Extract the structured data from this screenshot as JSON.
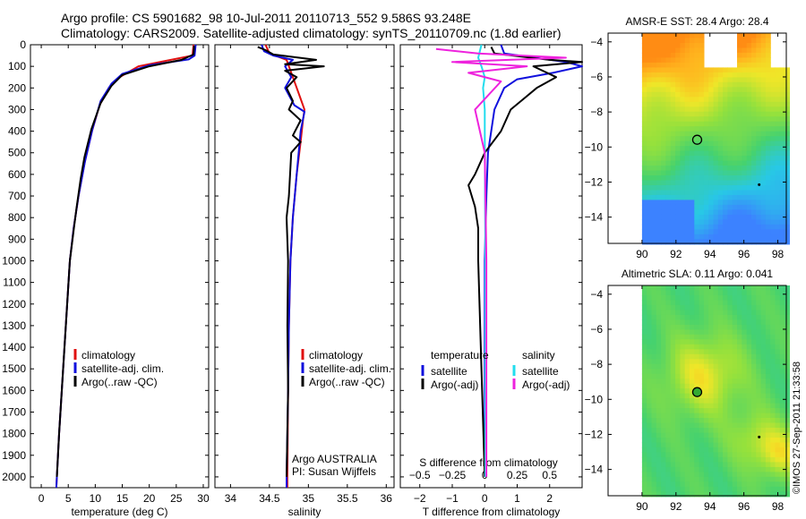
{
  "header": {
    "line1": "Argo profile: CS 5901682_98 10-Jul-2011 20110713_552 9.586S 93.248E",
    "line2": "Climatology: CARS2009. Satellite-adjusted climatology: synTS_20110709.nc (1.8d earlier)"
  },
  "colors": {
    "climatology": "#e01010",
    "satellite": "#1010dd",
    "argo": "#000000",
    "salinity_satellite": "#22ddee",
    "salinity_argo": "#ee22dd"
  },
  "credits": {
    "argo": "Argo AUSTRALIA",
    "pi": "PI: Susan Wijffels",
    "stamp": "©IMOS 27-Sep-2011 21:33:58"
  },
  "chart_data": [
    {
      "type": "line",
      "panel": "temperature",
      "xlabel": "temperature (deg C)",
      "ylabel": "",
      "xlim": [
        -2,
        31
      ],
      "ylim": [
        2050,
        0
      ],
      "x_ticks": [
        0,
        5,
        10,
        15,
        20,
        25,
        30
      ],
      "y_ticks": [
        0,
        100,
        200,
        300,
        400,
        500,
        600,
        700,
        800,
        900,
        1000,
        1100,
        1200,
        1300,
        1400,
        1500,
        1600,
        1700,
        1800,
        1900,
        2000
      ],
      "legend": [
        "climatology",
        "satellite-adj. clim.",
        "Argo(..raw -QC)"
      ],
      "series": [
        {
          "name": "climatology",
          "color": "#e01010",
          "points": [
            [
              28.2,
              0
            ],
            [
              28,
              50
            ],
            [
              24,
              70
            ],
            [
              18,
              100
            ],
            [
              14.5,
              150
            ],
            [
              12.5,
              200
            ],
            [
              10.8,
              280
            ],
            [
              9.4,
              400
            ],
            [
              8,
              550
            ],
            [
              6.9,
              700
            ],
            [
              6,
              850
            ],
            [
              5.3,
              1000
            ],
            [
              4.8,
              1200
            ],
            [
              4.3,
              1400
            ],
            [
              3.8,
              1600
            ],
            [
              3.3,
              1800
            ],
            [
              2.9,
              2000
            ],
            [
              2.8,
              2050
            ]
          ]
        },
        {
          "name": "satellite-adj. clim.",
          "color": "#1010dd",
          "points": [
            [
              28.6,
              0
            ],
            [
              28.4,
              50
            ],
            [
              27.3,
              68
            ],
            [
              20,
              95
            ],
            [
              15,
              135
            ],
            [
              13,
              180
            ],
            [
              11,
              260
            ],
            [
              9.5,
              390
            ],
            [
              8.1,
              540
            ],
            [
              6.9,
              700
            ],
            [
              6,
              850
            ],
            [
              5.3,
              1000
            ],
            [
              4.8,
              1200
            ],
            [
              4.3,
              1400
            ],
            [
              3.8,
              1600
            ],
            [
              3.3,
              1800
            ],
            [
              2.9,
              2000
            ],
            [
              2.8,
              2050
            ]
          ]
        },
        {
          "name": "Argo(..raw -QC)",
          "color": "#000000",
          "points": [
            [
              28.3,
              5
            ],
            [
              28.2,
              45
            ],
            [
              26,
              70
            ],
            [
              20,
              100
            ],
            [
              15,
              140
            ],
            [
              13,
              190
            ],
            [
              11,
              270
            ],
            [
              9.3,
              390
            ],
            [
              8,
              520
            ],
            [
              7.3,
              620
            ],
            [
              6.5,
              760
            ],
            [
              6,
              860
            ],
            [
              5.3,
              1000
            ],
            [
              4.8,
              1200
            ],
            [
              4.3,
              1400
            ],
            [
              3.8,
              1600
            ],
            [
              3.3,
              1800
            ],
            [
              2.9,
              2000
            ]
          ]
        }
      ]
    },
    {
      "type": "line",
      "panel": "salinity",
      "xlabel": "salinity",
      "ylabel": "",
      "xlim": [
        33.8,
        36.1
      ],
      "ylim": [
        2050,
        0
      ],
      "x_ticks": [
        34,
        34.5,
        35,
        35.5,
        36
      ],
      "x_tick_labels": [
        "34",
        "34.5",
        "35",
        "35.5",
        "36"
      ],
      "legend": [
        "climatology",
        "satellite-adj. clim.",
        "Argo(..raw -QC)"
      ],
      "series": [
        {
          "name": "climatology",
          "color": "#e01010",
          "points": [
            [
              34.45,
              0
            ],
            [
              34.5,
              40
            ],
            [
              34.72,
              70
            ],
            [
              34.75,
              100
            ],
            [
              34.8,
              150
            ],
            [
              34.9,
              250
            ],
            [
              34.95,
              300
            ],
            [
              34.93,
              350
            ],
            [
              34.9,
              450
            ],
            [
              34.85,
              600
            ],
            [
              34.8,
              800
            ],
            [
              34.77,
              1000
            ],
            [
              34.75,
              1300
            ],
            [
              34.74,
              1600
            ],
            [
              34.73,
              2000
            ],
            [
              34.73,
              2050
            ]
          ]
        },
        {
          "name": "satellite-adj. clim.",
          "color": "#1010dd",
          "points": [
            [
              34.4,
              0
            ],
            [
              34.43,
              30
            ],
            [
              34.55,
              50
            ],
            [
              34.8,
              70
            ],
            [
              34.7,
              100
            ],
            [
              34.78,
              150
            ],
            [
              34.7,
              200
            ],
            [
              34.82,
              280
            ],
            [
              34.95,
              310
            ],
            [
              34.9,
              400
            ],
            [
              34.85,
              600
            ],
            [
              34.8,
              800
            ],
            [
              34.77,
              1000
            ],
            [
              34.75,
              1300
            ],
            [
              34.74,
              1600
            ],
            [
              34.72,
              2000
            ],
            [
              34.72,
              2050
            ]
          ]
        },
        {
          "name": "Argo(..raw -QC)",
          "color": "#000000",
          "points": [
            [
              34.35,
              10
            ],
            [
              34.45,
              25
            ],
            [
              34.55,
              45
            ],
            [
              35.1,
              70
            ],
            [
              34.7,
              90
            ],
            [
              35.2,
              100
            ],
            [
              34.7,
              120
            ],
            [
              34.85,
              150
            ],
            [
              34.72,
              200
            ],
            [
              34.8,
              260
            ],
            [
              34.75,
              300
            ],
            [
              34.9,
              350
            ],
            [
              34.8,
              420
            ],
            [
              34.9,
              450
            ],
            [
              34.78,
              500
            ],
            [
              34.75,
              700
            ],
            [
              34.72,
              800
            ],
            [
              34.74,
              1000
            ],
            [
              34.73,
              1300
            ],
            [
              34.74,
              1600
            ],
            [
              34.72,
              2000
            ]
          ]
        }
      ]
    },
    {
      "type": "line",
      "panel": "difference",
      "xlabel": "T difference from climatology",
      "xlabel_top": "S difference from climatology",
      "ylabel": "",
      "xlim": [
        -2.6,
        3.0
      ],
      "ylim": [
        2050,
        0
      ],
      "x_ticks": [
        -2,
        -1,
        0,
        1,
        2
      ],
      "x_ticks_top": [
        -0.5,
        -0.25,
        0,
        0.25,
        0.5
      ],
      "legend_groups": [
        {
          "title": "temperature",
          "items": [
            "satellite",
            "Argo(-adj)"
          ]
        },
        {
          "title": "salinity",
          "items": [
            "satellite",
            "Argo(-adj)"
          ]
        }
      ],
      "series": [
        {
          "name": "temperature satellite",
          "color": "#1010dd",
          "points": [
            [
              0.5,
              0
            ],
            [
              0.6,
              40
            ],
            [
              2.5,
              80
            ],
            [
              3,
              100
            ],
            [
              2.1,
              130
            ],
            [
              1,
              160
            ],
            [
              0.6,
              200
            ],
            [
              0.3,
              300
            ],
            [
              0.2,
              400
            ],
            [
              0.1,
              500
            ],
            [
              0.05,
              700
            ],
            [
              0,
              1000
            ],
            [
              0,
              1500
            ],
            [
              0,
              2000
            ]
          ]
        },
        {
          "name": "temperature Argo(-adj)",
          "color": "#000000",
          "points": [
            [
              0.2,
              10
            ],
            [
              0.3,
              40
            ],
            [
              2,
              70
            ],
            [
              3,
              80
            ],
            [
              1.5,
              100
            ],
            [
              2.2,
              150
            ],
            [
              1.6,
              200
            ],
            [
              1.2,
              250
            ],
            [
              0.8,
              300
            ],
            [
              0.5,
              400
            ],
            [
              0,
              500
            ],
            [
              -0.3,
              600
            ],
            [
              -0.5,
              650
            ],
            [
              -0.3,
              750
            ],
            [
              -0.2,
              850
            ],
            [
              -0.2,
              1000
            ],
            [
              -0.1,
              1500
            ],
            [
              0,
              2000
            ]
          ]
        },
        {
          "name": "salinity satellite",
          "color": "#22ddee",
          "points": [
            [
              -0.1,
              0
            ],
            [
              -0.2,
              60
            ],
            [
              -0.1,
              100
            ],
            [
              0,
              150
            ],
            [
              -0.05,
              200
            ],
            [
              0,
              300
            ],
            [
              0,
              400
            ],
            [
              0.02,
              1000
            ],
            [
              0.02,
              2000
            ]
          ]
        },
        {
          "name": "salinity Argo(-adj)",
          "color": "#ee22dd",
          "points": [
            [
              -1.5,
              20
            ],
            [
              -0.2,
              40
            ],
            [
              2.5,
              60
            ],
            [
              -1,
              80
            ],
            [
              1.3,
              100
            ],
            [
              -0.5,
              130
            ],
            [
              0.5,
              170
            ],
            [
              -0.3,
              300
            ],
            [
              0,
              500
            ],
            [
              0.05,
              1000
            ],
            [
              0.05,
              2000
            ]
          ]
        }
      ]
    },
    {
      "type": "heatmap",
      "panel": "sst_map",
      "title": "AMSR-E SST: 28.4  Argo: 28.4",
      "xlim": [
        88,
        98.5
      ],
      "ylim": [
        -15.5,
        -3.5
      ],
      "x_ticks": [
        90,
        92,
        94,
        96,
        98
      ],
      "y_ticks": [
        -4,
        -6,
        -8,
        -10,
        -12,
        -14
      ],
      "marker": {
        "lon": 93.248,
        "lat": -9.586,
        "style": "open-circle"
      }
    },
    {
      "type": "heatmap",
      "panel": "sla_map",
      "title": "Altimetric SLA: 0.11  Argo: 0.041",
      "xlim": [
        88,
        98.5
      ],
      "ylim": [
        -15.5,
        -3.5
      ],
      "x_ticks": [
        90,
        92,
        94,
        96,
        98
      ],
      "y_ticks": [
        -4,
        -6,
        -8,
        -10,
        -12,
        -14
      ],
      "marker": {
        "lon": 93.248,
        "lat": -9.586,
        "style": "filled-circle"
      }
    }
  ]
}
